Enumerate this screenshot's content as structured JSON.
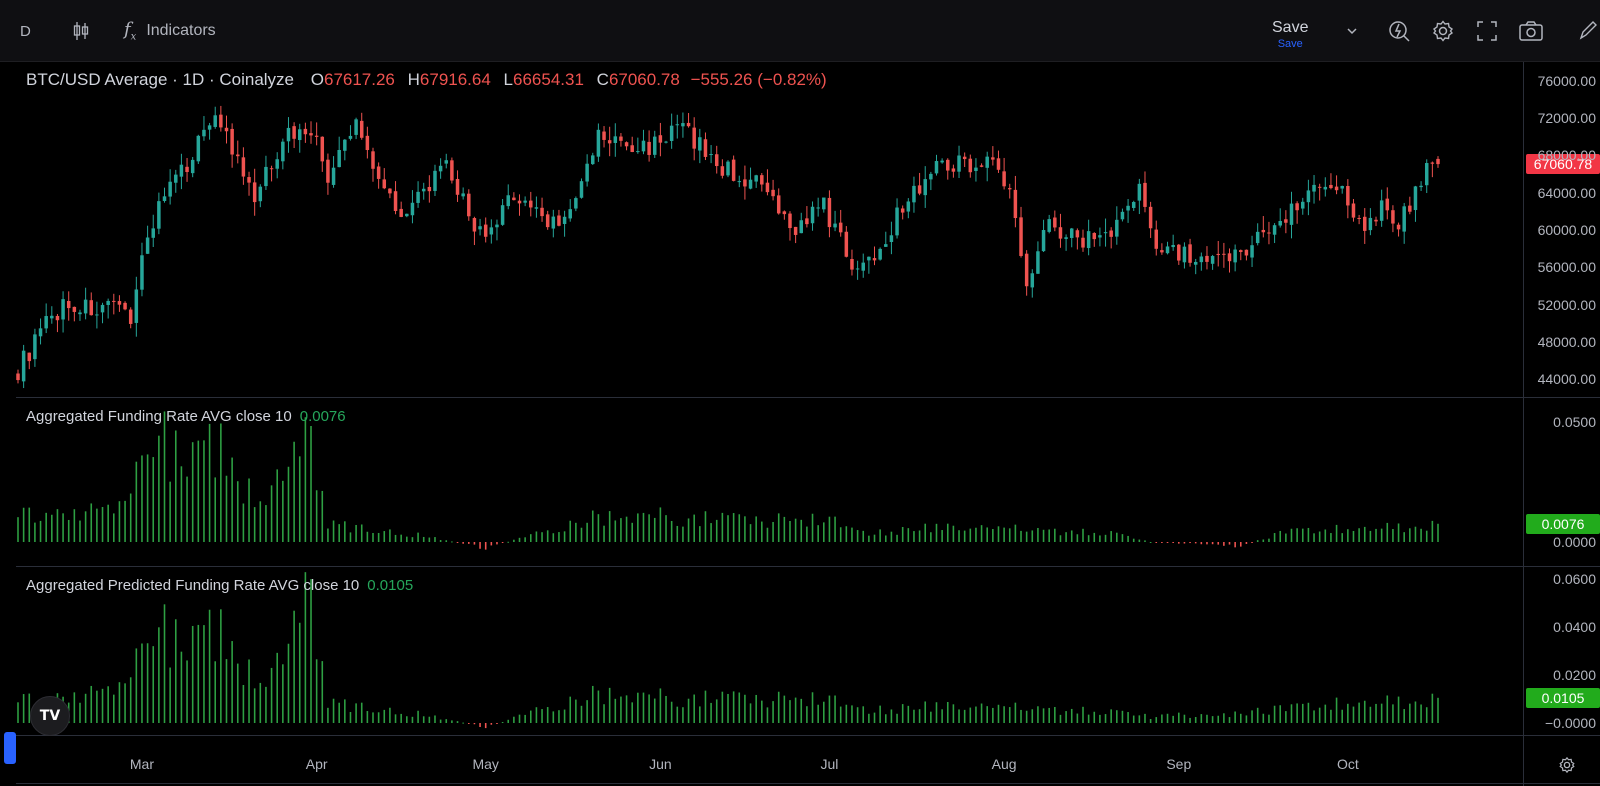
{
  "toolbar": {
    "interval": "D",
    "indicators_label": "Indicators",
    "save_label": "Save",
    "save_sub": "Save",
    "icons": [
      "candles-icon",
      "fx-icon",
      "chevron-down-icon",
      "alert-icon",
      "gear-icon",
      "fullscreen-icon",
      "camera-icon",
      "pencil-icon"
    ]
  },
  "main": {
    "title": "BTC/USD Average · 1D · Coinalyze",
    "o_label": "O",
    "o": "67617.26",
    "h_label": "H",
    "h": "67916.64",
    "l_label": "L",
    "l": "66654.31",
    "c_label": "C",
    "c": "67060.78",
    "change": "−555.26 (−0.82%)",
    "last_price_tag": "67060.78",
    "price_ticks": [
      "76000.00",
      "72000.00",
      "68000.00",
      "64000.00",
      "60000.00",
      "56000.00",
      "52000.00",
      "48000.00",
      "44000.00"
    ]
  },
  "funding": {
    "title": "Aggregated Funding Rate AVG close 10",
    "value": "0.0076",
    "tag": "0.0076",
    "ticks": [
      "0.0500",
      "0.0000"
    ]
  },
  "predicted": {
    "title": "Aggregated Predicted Funding Rate AVG close 10",
    "value": "0.0105",
    "tag": "0.0105",
    "ticks": [
      "0.0600",
      "0.0400",
      "0.0200",
      "−0.0000"
    ]
  },
  "time_axis": {
    "months": [
      "Mar",
      "Apr",
      "May",
      "Jun",
      "Jul",
      "Aug",
      "Sep",
      "Oct"
    ]
  },
  "logo_text": "TV",
  "colors": {
    "up": "#26a69a",
    "down": "#ef5350",
    "hist_pos": "#2ea043",
    "hist_neg": "#ef5350",
    "tag_red": "#f23645",
    "tag_green": "#22ab1c"
  },
  "chart_data": [
    {
      "type": "candlestick",
      "title": "BTC/USD Average · 1D · Coinalyze",
      "x_range": [
        "2024-02-08",
        "2024-10-17"
      ],
      "ylim": [
        42000,
        78000
      ],
      "anchors": [
        [
          "2024-02-08",
          45000
        ],
        [
          "2024-02-12",
          49000
        ],
        [
          "2024-02-16",
          52000
        ],
        [
          "2024-02-22",
          51500
        ],
        [
          "2024-02-28",
          51000
        ],
        [
          "2024-03-01",
          57000
        ],
        [
          "2024-03-04",
          63000
        ],
        [
          "2024-03-08",
          66000
        ],
        [
          "2024-03-14",
          73000
        ],
        [
          "2024-03-18",
          67000
        ],
        [
          "2024-03-21",
          63000
        ],
        [
          "2024-03-26",
          70000
        ],
        [
          "2024-03-31",
          71000
        ],
        [
          "2024-04-03",
          65500
        ],
        [
          "2024-04-08",
          71500
        ],
        [
          "2024-04-13",
          64500
        ],
        [
          "2024-04-17",
          61500
        ],
        [
          "2024-04-21",
          65000
        ],
        [
          "2024-04-24",
          66500
        ],
        [
          "2024-05-01",
          58500
        ],
        [
          "2024-05-06",
          64000
        ],
        [
          "2024-05-12",
          61000
        ],
        [
          "2024-05-16",
          61500
        ],
        [
          "2024-05-21",
          70000
        ],
        [
          "2024-05-28",
          68500
        ],
        [
          "2024-06-05",
          71000
        ],
        [
          "2024-06-11",
          67000
        ],
        [
          "2024-06-19",
          64500
        ],
        [
          "2024-06-24",
          60000
        ],
        [
          "2024-06-30",
          62500
        ],
        [
          "2024-07-05",
          56500
        ],
        [
          "2024-07-08",
          56500
        ],
        [
          "2024-07-15",
          63500
        ],
        [
          "2024-07-21",
          67500
        ],
        [
          "2024-07-26",
          67000
        ],
        [
          "2024-07-29",
          68000
        ],
        [
          "2024-08-02",
          64000
        ],
        [
          "2024-08-05",
          54000
        ],
        [
          "2024-08-08",
          61000
        ],
        [
          "2024-08-14",
          59000
        ],
        [
          "2024-08-20",
          60000
        ],
        [
          "2024-08-25",
          64000
        ],
        [
          "2024-08-28",
          59000
        ],
        [
          "2024-09-06",
          56000
        ],
        [
          "2024-09-11",
          57500
        ],
        [
          "2024-09-17",
          60000
        ],
        [
          "2024-09-26",
          65500
        ],
        [
          "2024-10-01",
          63500
        ],
        [
          "2024-10-03",
          60500
        ],
        [
          "2024-10-07",
          62500
        ],
        [
          "2024-10-10",
          60500
        ],
        [
          "2024-10-15",
          66500
        ],
        [
          "2024-10-17",
          67060.78
        ]
      ],
      "last": {
        "open": 67617.26,
        "high": 67916.64,
        "low": 66654.31,
        "close": 67060.78
      }
    },
    {
      "type": "bar",
      "title": "Aggregated Funding Rate AVG close 10",
      "ylim": [
        -0.01,
        0.06
      ],
      "anchors": [
        [
          "2024-02-08",
          0.012
        ],
        [
          "2024-02-26",
          0.015
        ],
        [
          "2024-03-04",
          0.05
        ],
        [
          "2024-03-10",
          0.036
        ],
        [
          "2024-03-14",
          0.045
        ],
        [
          "2024-03-20",
          0.022
        ],
        [
          "2024-03-26",
          0.025
        ],
        [
          "2024-03-31",
          0.05
        ],
        [
          "2024-04-03",
          0.008
        ],
        [
          "2024-04-20",
          0.003
        ],
        [
          "2024-05-01",
          -0.003
        ],
        [
          "2024-05-10",
          0.004
        ],
        [
          "2024-05-21",
          0.012
        ],
        [
          "2024-06-01",
          0.012
        ],
        [
          "2024-06-15",
          0.01
        ],
        [
          "2024-07-02",
          0.012
        ],
        [
          "2024-07-07",
          0.004
        ],
        [
          "2024-07-20",
          0.007
        ],
        [
          "2024-08-02",
          0.006
        ],
        [
          "2024-08-08",
          0.005
        ],
        [
          "2024-08-20",
          0.004
        ],
        [
          "2024-08-27",
          0.0
        ],
        [
          "2024-09-05",
          -0.001
        ],
        [
          "2024-09-12",
          -0.002
        ],
        [
          "2024-09-20",
          0.005
        ],
        [
          "2024-10-01",
          0.006
        ],
        [
          "2024-10-17",
          0.0076
        ]
      ]
    },
    {
      "type": "bar",
      "title": "Aggregated Predicted Funding Rate AVG close 10",
      "ylim": [
        -0.005,
        0.065
      ],
      "anchors": [
        [
          "2024-02-08",
          0.01
        ],
        [
          "2024-02-26",
          0.015
        ],
        [
          "2024-03-04",
          0.045
        ],
        [
          "2024-03-10",
          0.035
        ],
        [
          "2024-03-14",
          0.043
        ],
        [
          "2024-03-20",
          0.022
        ],
        [
          "2024-03-26",
          0.024
        ],
        [
          "2024-03-31",
          0.062
        ],
        [
          "2024-04-03",
          0.009
        ],
        [
          "2024-04-20",
          0.004
        ],
        [
          "2024-05-01",
          -0.002
        ],
        [
          "2024-05-10",
          0.006
        ],
        [
          "2024-05-21",
          0.014
        ],
        [
          "2024-06-01",
          0.012
        ],
        [
          "2024-06-15",
          0.011
        ],
        [
          "2024-07-02",
          0.013
        ],
        [
          "2024-07-07",
          0.006
        ],
        [
          "2024-07-20",
          0.008
        ],
        [
          "2024-08-02",
          0.007
        ],
        [
          "2024-08-08",
          0.006
        ],
        [
          "2024-08-20",
          0.005
        ],
        [
          "2024-08-27",
          0.003
        ],
        [
          "2024-09-05",
          0.004
        ],
        [
          "2024-09-12",
          0.004
        ],
        [
          "2024-09-20",
          0.007
        ],
        [
          "2024-10-01",
          0.009
        ],
        [
          "2024-10-17",
          0.0105
        ]
      ]
    }
  ]
}
